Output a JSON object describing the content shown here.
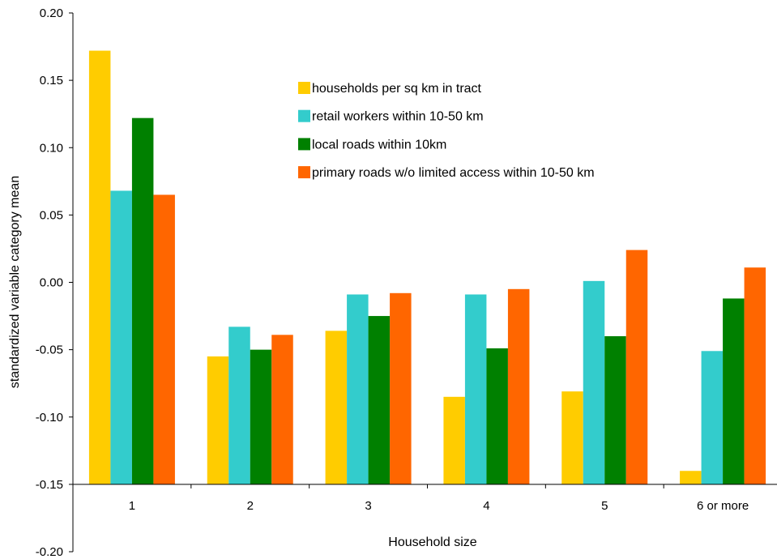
{
  "chart_data": {
    "type": "bar",
    "title": "",
    "xlabel": "Household size",
    "ylabel": "standardized variable category mean",
    "ylim": [
      -0.2,
      0.2
    ],
    "yticks": [
      "0.20",
      "0.15",
      "0.10",
      "0.05",
      "0.00",
      "-0.05",
      "-0.10",
      "-0.15",
      "-0.20"
    ],
    "ytick_values": [
      0.2,
      0.15,
      0.1,
      0.05,
      0.0,
      -0.05,
      -0.1,
      -0.15,
      -0.2
    ],
    "x_axis_crossing": -0.15,
    "categories": [
      "1",
      "2",
      "3",
      "4",
      "5",
      "6 or more"
    ],
    "legend_position": "upper-center",
    "grid": false,
    "series": [
      {
        "name": "households per sq km in tract",
        "color": "#FFCC00",
        "values": [
          0.172,
          -0.055,
          -0.036,
          -0.085,
          -0.081,
          -0.14
        ]
      },
      {
        "name": "retail workers within 10-50 km",
        "color": "#33CCCC",
        "values": [
          0.068,
          -0.033,
          -0.009,
          -0.009,
          0.001,
          -0.051
        ]
      },
      {
        "name": "local roads within 10km",
        "color": "#008000",
        "values": [
          0.122,
          -0.05,
          -0.025,
          -0.049,
          -0.04,
          -0.012
        ]
      },
      {
        "name": "primary roads w/o limited access within 10-50 km",
        "color": "#FF6600",
        "values": [
          0.065,
          -0.039,
          -0.008,
          -0.005,
          0.024,
          0.011
        ]
      }
    ]
  }
}
